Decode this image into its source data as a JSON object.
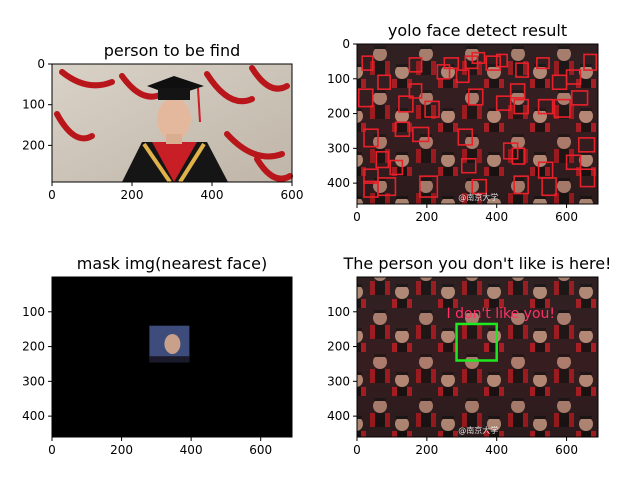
{
  "figure": {
    "panels": [
      {
        "id": "panel-person",
        "title": "person to be find",
        "x_ticks": [
          "0",
          "200",
          "400",
          "600"
        ],
        "y_ticks": [
          "0",
          "100",
          "200"
        ],
        "x_range": [
          0,
          600
        ],
        "y_range": [
          0,
          290
        ],
        "x_tick_values": [
          0,
          200,
          400,
          600
        ],
        "y_tick_values": [
          0,
          100,
          200
        ],
        "image": "portrait-photo"
      },
      {
        "id": "panel-yolo",
        "title": "yolo face detect result",
        "x_ticks": [
          "0",
          "200",
          "400",
          "600"
        ],
        "y_ticks": [
          "0",
          "100",
          "200",
          "300",
          "400"
        ],
        "x_range": [
          0,
          690
        ],
        "y_range": [
          0,
          460
        ],
        "x_tick_values": [
          0,
          200,
          400,
          600
        ],
        "y_tick_values": [
          0,
          100,
          200,
          300,
          400
        ],
        "image": "crowd-photo",
        "box_color": "#e8202a",
        "boxes": [
          [
            15,
            35,
            45,
            75
          ],
          [
            60,
            90,
            95,
            130
          ],
          [
            150,
            40,
            185,
            80
          ],
          [
            150,
            115,
            185,
            155
          ],
          [
            230,
            60,
            265,
            100
          ],
          [
            250,
            40,
            290,
            70
          ],
          [
            285,
            75,
            320,
            110
          ],
          [
            310,
            35,
            345,
            70
          ],
          [
            330,
            25,
            365,
            55
          ],
          [
            370,
            35,
            410,
            75
          ],
          [
            400,
            30,
            430,
            65
          ],
          [
            455,
            55,
            490,
            95
          ],
          [
            515,
            40,
            550,
            70
          ],
          [
            560,
            90,
            600,
            130
          ],
          [
            600,
            75,
            640,
            115
          ],
          [
            650,
            30,
            685,
            75
          ],
          [
            5,
            130,
            45,
            180
          ],
          [
            120,
            150,
            160,
            195
          ],
          [
            195,
            165,
            235,
            210
          ],
          [
            320,
            130,
            360,
            175
          ],
          [
            400,
            150,
            440,
            190
          ],
          [
            440,
            115,
            480,
            155
          ],
          [
            450,
            160,
            490,
            200
          ],
          [
            520,
            160,
            560,
            200
          ],
          [
            565,
            160,
            610,
            210
          ],
          [
            615,
            135,
            660,
            175
          ],
          [
            20,
            245,
            60,
            295
          ],
          [
            110,
            225,
            150,
            265
          ],
          [
            160,
            240,
            205,
            280
          ],
          [
            290,
            245,
            330,
            290
          ],
          [
            420,
            285,
            460,
            330
          ],
          [
            635,
            270,
            680,
            310
          ],
          [
            600,
            320,
            640,
            360
          ],
          [
            55,
            310,
            90,
            355
          ],
          [
            20,
            360,
            60,
            400
          ],
          [
            95,
            335,
            130,
            375
          ],
          [
            300,
            330,
            340,
            370
          ],
          [
            445,
            300,
            480,
            345
          ],
          [
            520,
            340,
            560,
            385
          ],
          [
            180,
            380,
            230,
            440
          ],
          [
            330,
            390,
            370,
            430
          ],
          [
            20,
            395,
            60,
            440
          ],
          [
            60,
            385,
            110,
            435
          ],
          [
            450,
            380,
            490,
            430
          ],
          [
            530,
            385,
            570,
            435
          ],
          [
            640,
            360,
            680,
            410
          ]
        ],
        "watermark": "@南京大学"
      },
      {
        "id": "panel-mask",
        "title": "mask img(nearest face)",
        "x_ticks": [
          "0",
          "200",
          "400",
          "600"
        ],
        "y_ticks": [
          "100",
          "200",
          "300",
          "400"
        ],
        "x_range": [
          0,
          690
        ],
        "y_range": [
          0,
          460
        ],
        "x_tick_values": [
          0,
          200,
          400,
          600
        ],
        "y_tick_values": [
          100,
          200,
          300,
          400
        ],
        "image": "black-mask",
        "face_patch": [
          280,
          140,
          395,
          245
        ]
      },
      {
        "id": "panel-result",
        "title": "The person you don't like is here!",
        "x_ticks": [
          "0",
          "200",
          "400",
          "600"
        ],
        "y_ticks": [
          "100",
          "200",
          "300",
          "400"
        ],
        "x_range": [
          0,
          690
        ],
        "y_range": [
          0,
          460
        ],
        "x_tick_values": [
          0,
          200,
          400,
          600
        ],
        "y_tick_values": [
          100,
          200,
          300,
          400
        ],
        "image": "crowd-photo",
        "highlight_box": [
          285,
          135,
          400,
          240
        ],
        "highlight_color": "#1ee81e",
        "annotation": "I don't like you!",
        "annotation_color": "#ff3366",
        "watermark": "@南京大学"
      }
    ]
  }
}
